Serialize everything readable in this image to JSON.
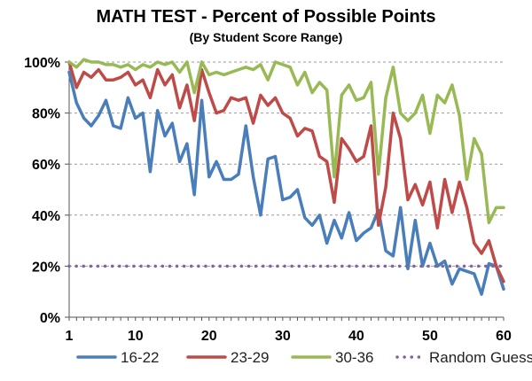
{
  "chart_data": {
    "type": "line",
    "title": "MATH TEST - Percent of Possible Points",
    "subtitle": "(By Student Score Range)",
    "xlabel": "",
    "ylabel": "",
    "xlim": [
      1,
      60
    ],
    "ylim": [
      0,
      100
    ],
    "x_ticks": [
      "1",
      "10",
      "20",
      "30",
      "40",
      "50",
      "60"
    ],
    "y_ticks": [
      "0%",
      "20%",
      "40%",
      "60%",
      "80%",
      "100%"
    ],
    "grid": "horizontal dashed",
    "legend_position": "bottom",
    "series": [
      {
        "name": "16-22",
        "color": "#4a7ebb",
        "values": [
          96,
          84,
          78,
          75,
          79,
          85,
          75,
          74,
          86,
          78,
          80,
          57,
          81,
          71,
          76,
          61,
          68,
          48,
          85,
          55,
          61,
          54,
          54,
          56,
          75,
          55,
          40,
          62,
          63,
          46,
          47,
          50,
          39,
          36,
          40,
          29,
          38,
          31,
          41,
          30,
          33,
          35,
          42,
          26,
          24,
          43,
          19,
          38,
          20,
          29,
          20,
          22,
          13,
          19,
          18,
          17,
          9,
          21,
          20,
          11
        ]
      },
      {
        "name": "23-29",
        "color": "#be4b48",
        "values": [
          100,
          90,
          96,
          94,
          97,
          93,
          93,
          94,
          96,
          91,
          93,
          86,
          97,
          91,
          95,
          82,
          91,
          77,
          97,
          88,
          80,
          81,
          86,
          85,
          86,
          76,
          87,
          83,
          86,
          80,
          78,
          71,
          74,
          73,
          63,
          61,
          45,
          70,
          66,
          61,
          63,
          75,
          36,
          51,
          80,
          70,
          46,
          52,
          44,
          53,
          35,
          54,
          41,
          53,
          43,
          29,
          25,
          30,
          20,
          14
        ]
      },
      {
        "name": "30-36",
        "color": "#98b954",
        "values": [
          100,
          98,
          101,
          100,
          100,
          99,
          99,
          98,
          99,
          97,
          99,
          98,
          100,
          99,
          100,
          96,
          100,
          88,
          100,
          95,
          96,
          95,
          96,
          97,
          98,
          97,
          99,
          93,
          100,
          99,
          98,
          91,
          96,
          88,
          92,
          89,
          55,
          87,
          91,
          85,
          86,
          92,
          56,
          86,
          98,
          80,
          77,
          80,
          87,
          72,
          87,
          84,
          91,
          79,
          54,
          70,
          64,
          37,
          43,
          43
        ]
      },
      {
        "name": "Random Guessing",
        "color": "#8064a2",
        "values": [
          20,
          20
        ]
      }
    ]
  }
}
